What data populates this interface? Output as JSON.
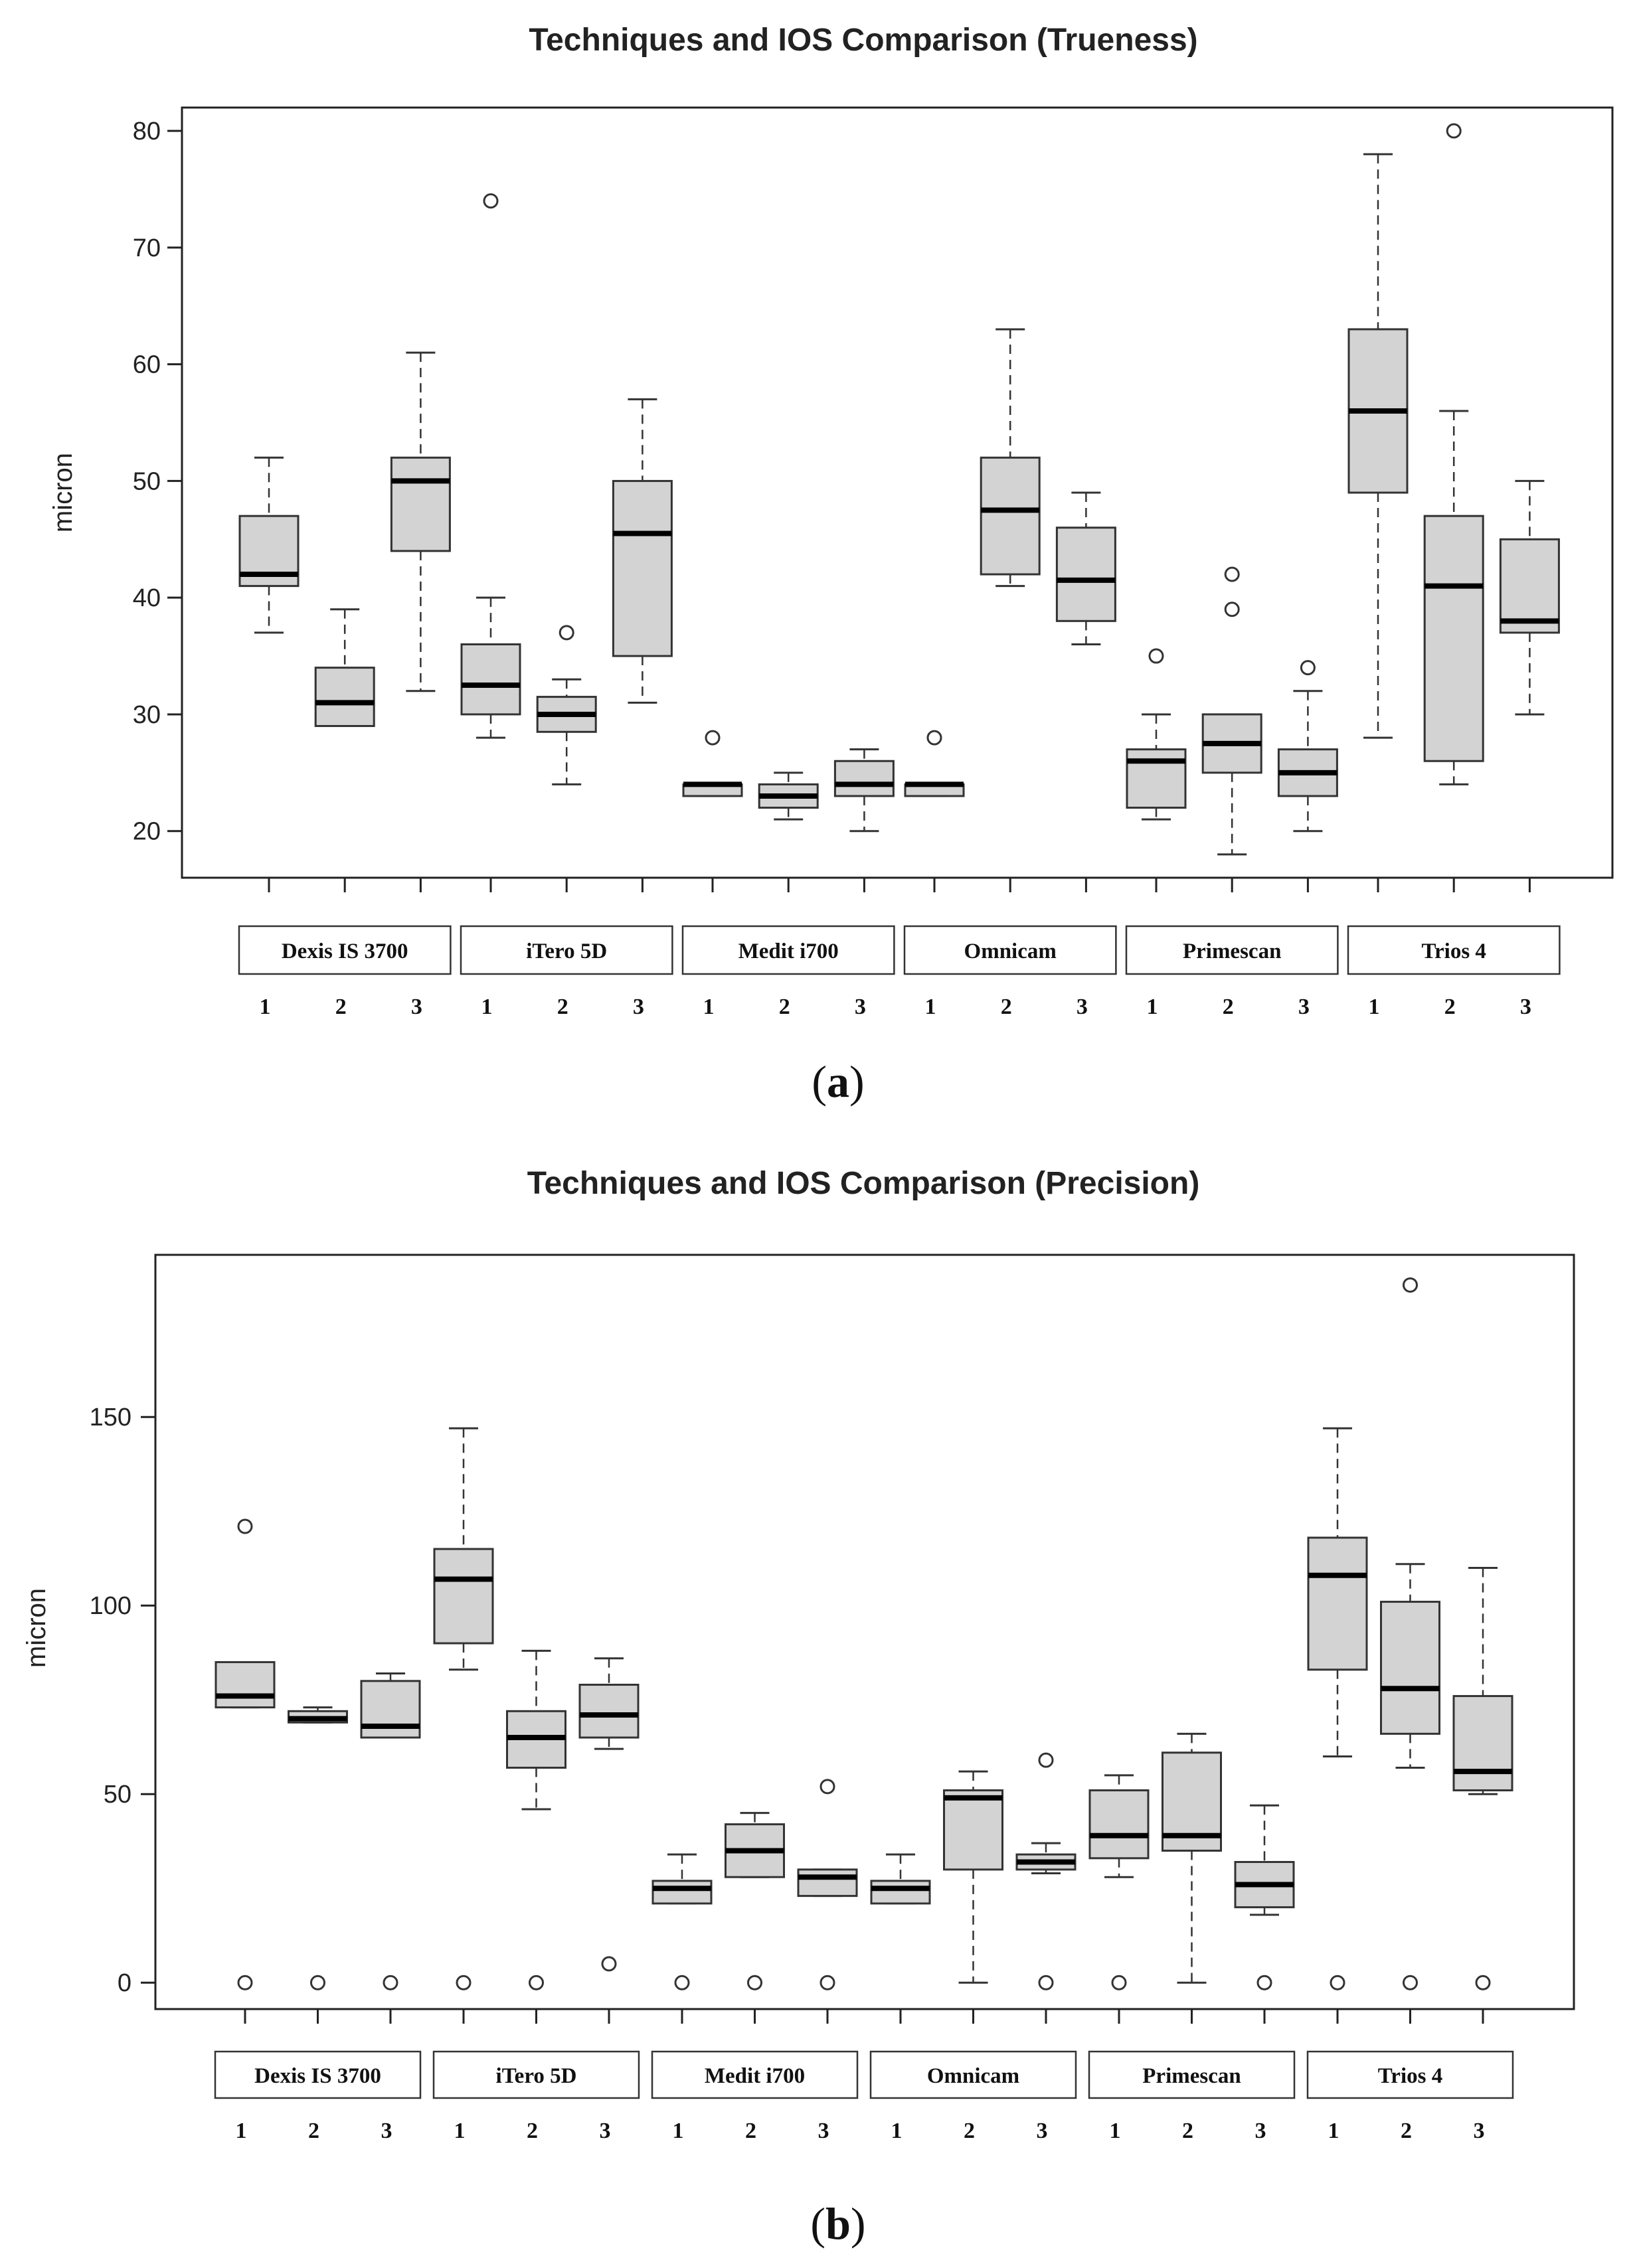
{
  "chart_data": [
    {
      "type": "boxplot",
      "title": "Techniques and IOS Comparison (Trueness)",
      "ylabel": "micron",
      "ylim": [
        16,
        82
      ],
      "yticks": [
        20,
        30,
        40,
        50,
        60,
        70,
        80
      ],
      "caption_letter": "a",
      "groups": [
        "Dexis IS 3700",
        "iTero 5D",
        "Medit i700",
        "Omnicam",
        "Primescan",
        "Trios 4"
      ],
      "techniques": [
        "1",
        "2",
        "3"
      ],
      "boxes": [
        {
          "group": "Dexis IS 3700",
          "technique": "1",
          "min": 37,
          "q1": 41,
          "median": 42,
          "q3": 47,
          "max": 52,
          "outliers": []
        },
        {
          "group": "Dexis IS 3700",
          "technique": "2",
          "min": 29,
          "q1": 29,
          "median": 31,
          "q3": 34,
          "max": 39,
          "outliers": []
        },
        {
          "group": "Dexis IS 3700",
          "technique": "3",
          "min": 32,
          "q1": 44,
          "median": 50,
          "q3": 52,
          "max": 61,
          "outliers": []
        },
        {
          "group": "iTero 5D",
          "technique": "1",
          "min": 28,
          "q1": 30,
          "median": 32.5,
          "q3": 36,
          "max": 40,
          "outliers": [
            74
          ]
        },
        {
          "group": "iTero 5D",
          "technique": "2",
          "min": 24,
          "q1": 28.5,
          "median": 30,
          "q3": 31.5,
          "max": 33,
          "outliers": [
            37
          ]
        },
        {
          "group": "iTero 5D",
          "technique": "3",
          "min": 31,
          "q1": 35,
          "median": 45.5,
          "q3": 50,
          "max": 57,
          "outliers": []
        },
        {
          "group": "Medit i700",
          "technique": "1",
          "min": 23,
          "q1": 23,
          "median": 24,
          "q3": 24,
          "max": 24,
          "outliers": [
            28
          ]
        },
        {
          "group": "Medit i700",
          "technique": "2",
          "min": 21,
          "q1": 22,
          "median": 23,
          "q3": 24,
          "max": 25,
          "outliers": []
        },
        {
          "group": "Medit i700",
          "technique": "3",
          "min": 20,
          "q1": 23,
          "median": 24,
          "q3": 26,
          "max": 27,
          "outliers": []
        },
        {
          "group": "Omnicam",
          "technique": "1",
          "min": 23,
          "q1": 23,
          "median": 24,
          "q3": 24,
          "max": 24,
          "outliers": [
            28
          ]
        },
        {
          "group": "Omnicam",
          "technique": "2",
          "min": 41,
          "q1": 42,
          "median": 47.5,
          "q3": 52,
          "max": 63,
          "outliers": []
        },
        {
          "group": "Omnicam",
          "technique": "3",
          "min": 36,
          "q1": 38,
          "median": 41.5,
          "q3": 46,
          "max": 49,
          "outliers": []
        },
        {
          "group": "Primescan",
          "technique": "1",
          "min": 21,
          "q1": 22,
          "median": 26,
          "q3": 27,
          "max": 30,
          "outliers": [
            35
          ]
        },
        {
          "group": "Primescan",
          "technique": "2",
          "min": 18,
          "q1": 25,
          "median": 27.5,
          "q3": 30,
          "max": 30,
          "outliers": [
            39,
            42
          ]
        },
        {
          "group": "Primescan",
          "technique": "3",
          "min": 20,
          "q1": 23,
          "median": 25,
          "q3": 27,
          "max": 32,
          "outliers": [
            34
          ]
        },
        {
          "group": "Trios 4",
          "technique": "1",
          "min": 28,
          "q1": 49,
          "median": 56,
          "q3": 63,
          "max": 78,
          "outliers": []
        },
        {
          "group": "Trios 4",
          "technique": "2",
          "min": 24,
          "q1": 26,
          "median": 41,
          "q3": 47,
          "max": 56,
          "outliers": [
            80
          ]
        },
        {
          "group": "Trios 4",
          "technique": "3",
          "min": 30,
          "q1": 37,
          "median": 38,
          "q3": 45,
          "max": 50,
          "outliers": []
        }
      ]
    },
    {
      "type": "boxplot",
      "title": "Techniques and IOS Comparison (Precision)",
      "ylabel": "micron",
      "ylim": [
        -7,
        193
      ],
      "yticks": [
        0,
        50,
        100,
        150
      ],
      "caption_letter": "b",
      "groups": [
        "Dexis IS 3700",
        "iTero 5D",
        "Medit i700",
        "Omnicam",
        "Primescan",
        "Trios 4"
      ],
      "techniques": [
        "1",
        "2",
        "3"
      ],
      "boxes": [
        {
          "group": "Dexis IS 3700",
          "technique": "1",
          "min": 73,
          "q1": 73,
          "median": 76,
          "q3": 85,
          "max": 85,
          "outliers": [
            121,
            0
          ]
        },
        {
          "group": "Dexis IS 3700",
          "technique": "2",
          "min": 69,
          "q1": 69,
          "median": 70,
          "q3": 72,
          "max": 73,
          "outliers": [
            0
          ]
        },
        {
          "group": "Dexis IS 3700",
          "technique": "3",
          "min": 65,
          "q1": 65,
          "median": 68,
          "q3": 80,
          "max": 82,
          "outliers": [
            0
          ]
        },
        {
          "group": "iTero 5D",
          "technique": "1",
          "min": 83,
          "q1": 90,
          "median": 107,
          "q3": 115,
          "max": 147,
          "outliers": [
            0
          ]
        },
        {
          "group": "iTero 5D",
          "technique": "2",
          "min": 46,
          "q1": 57,
          "median": 65,
          "q3": 72,
          "max": 88,
          "outliers": [
            0
          ]
        },
        {
          "group": "iTero 5D",
          "technique": "3",
          "min": 62,
          "q1": 65,
          "median": 71,
          "q3": 79,
          "max": 86,
          "outliers": [
            5
          ]
        },
        {
          "group": "Medit i700",
          "technique": "1",
          "min": 21,
          "q1": 21,
          "median": 25,
          "q3": 27,
          "max": 34,
          "outliers": [
            0
          ]
        },
        {
          "group": "Medit i700",
          "technique": "2",
          "min": 28,
          "q1": 28,
          "median": 35,
          "q3": 42,
          "max": 45,
          "outliers": [
            0
          ]
        },
        {
          "group": "Medit i700",
          "technique": "3",
          "min": 23,
          "q1": 23,
          "median": 28,
          "q3": 30,
          "max": 30,
          "outliers": [
            52,
            0
          ]
        },
        {
          "group": "Omnicam",
          "technique": "1",
          "min": 21,
          "q1": 21,
          "median": 25,
          "q3": 27,
          "max": 34,
          "outliers": []
        },
        {
          "group": "Omnicam",
          "technique": "2",
          "min": 0,
          "q1": 30,
          "median": 49,
          "q3": 51,
          "max": 56,
          "outliers": []
        },
        {
          "group": "Omnicam",
          "technique": "3",
          "min": 29,
          "q1": 30,
          "median": 32,
          "q3": 34,
          "max": 37,
          "outliers": [
            59,
            0
          ]
        },
        {
          "group": "Primescan",
          "technique": "1",
          "min": 28,
          "q1": 33,
          "median": 39,
          "q3": 51,
          "max": 55,
          "outliers": [
            0
          ]
        },
        {
          "group": "Primescan",
          "technique": "2",
          "min": 0,
          "q1": 35,
          "median": 39,
          "q3": 61,
          "max": 66,
          "outliers": []
        },
        {
          "group": "Primescan",
          "technique": "3",
          "min": 18,
          "q1": 20,
          "median": 26,
          "q3": 32,
          "max": 47,
          "outliers": [
            0
          ]
        },
        {
          "group": "Trios 4",
          "technique": "1",
          "min": 60,
          "q1": 83,
          "median": 108,
          "q3": 118,
          "max": 147,
          "outliers": [
            0
          ]
        },
        {
          "group": "Trios 4",
          "technique": "2",
          "min": 57,
          "q1": 66,
          "median": 78,
          "q3": 101,
          "max": 111,
          "outliers": [
            185,
            0
          ]
        },
        {
          "group": "Trios 4",
          "technique": "3",
          "min": 50,
          "q1": 51,
          "median": 56,
          "q3": 76,
          "max": 110,
          "outliers": [
            0
          ]
        }
      ]
    }
  ]
}
